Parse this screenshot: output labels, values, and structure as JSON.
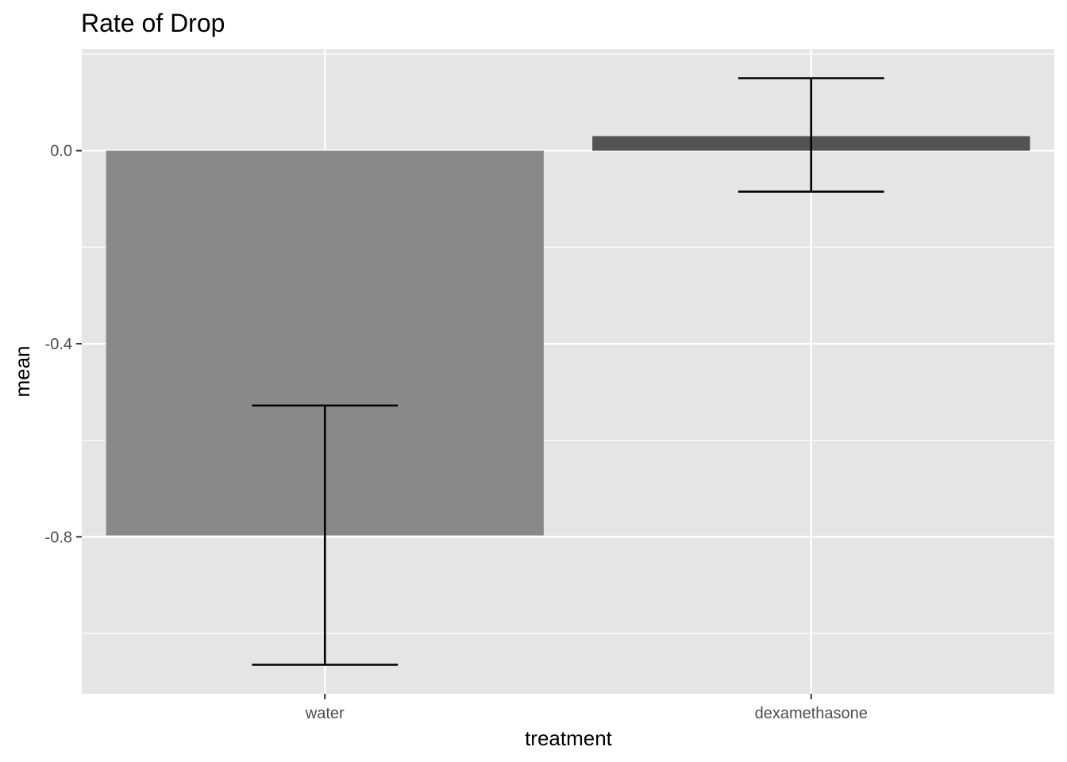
{
  "chart_data": {
    "type": "bar",
    "title": "Rate of Drop",
    "xlabel": "treatment",
    "ylabel": "mean",
    "categories": [
      "water",
      "dexamethasone"
    ],
    "values": [
      -0.797,
      0.03
    ],
    "error_bars": [
      {
        "lower": -1.065,
        "upper": -0.528
      },
      {
        "lower": -0.085,
        "upper": 0.15
      }
    ],
    "bar_colors": [
      "#898989",
      "#535353"
    ],
    "ylim": [
      -1.125,
      0.21
    ],
    "yticks": [
      0.0,
      -0.4,
      -0.8
    ],
    "ytick_labels": [
      "0.0",
      "-0.4",
      "-0.8"
    ],
    "grid": true,
    "legend": "none"
  },
  "colors": {
    "panel_background": "#e5e5e5",
    "grid": "#ffffff",
    "axis_ticks": "#333333",
    "error_bar": "#000000"
  }
}
